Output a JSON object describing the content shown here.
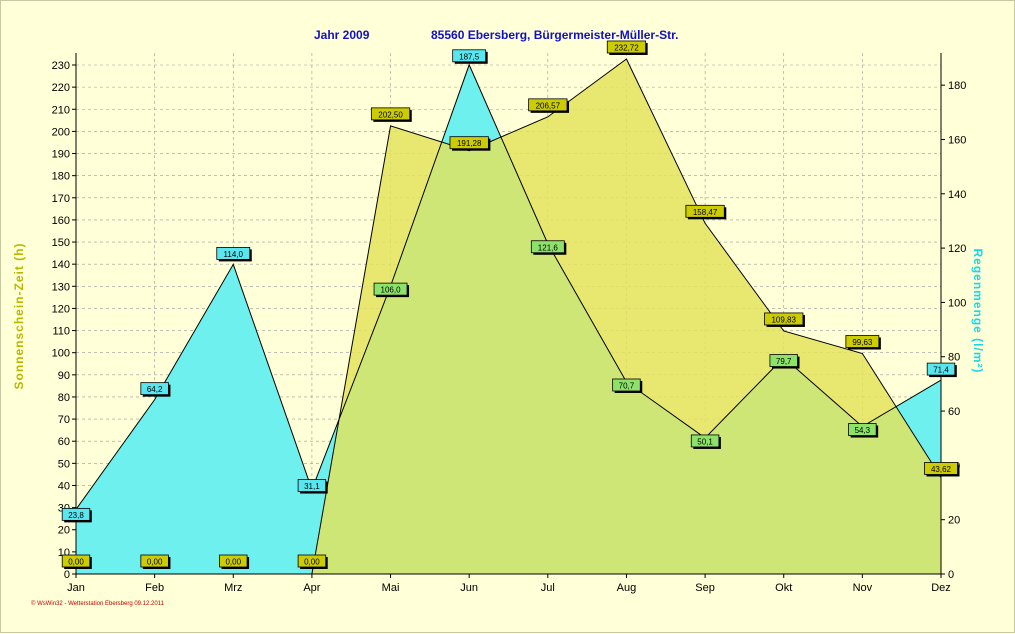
{
  "title": {
    "year": "Jahr  2009",
    "location": "85560 Ebersberg, Bürgermeister-Müller-Str."
  },
  "footer": "© WsWin32 - Wetterstation Ebersberg 09.12.2011",
  "chart_data": {
    "type": "area",
    "categories": [
      "Jan",
      "Feb",
      "Mrz",
      "Apr",
      "Mai",
      "Jun",
      "Jul",
      "Aug",
      "Sep",
      "Okt",
      "Nov",
      "Dez"
    ],
    "ylabel_left": "Sonnenschein-Zeit  (h)",
    "ylabel_right": "Regenmenge  (l/m²)",
    "ylim_left": [
      0,
      230
    ],
    "ylim_right": [
      0,
      190
    ],
    "yticks_left": [
      0,
      10,
      20,
      30,
      40,
      50,
      60,
      70,
      80,
      90,
      100,
      110,
      120,
      130,
      140,
      150,
      160,
      170,
      180,
      190,
      200,
      210,
      220,
      230
    ],
    "yticks_right": [
      0,
      20,
      40,
      60,
      80,
      100,
      120,
      140,
      160,
      180
    ],
    "grid": true,
    "series": [
      {
        "axis": "left",
        "color": "#e3e35a",
        "label_color": "#cccc00",
        "values": [
          0.0,
          0.0,
          0.0,
          0.0,
          202.5,
          191.28,
          206.57,
          232.72,
          158.47,
          109.83,
          99.63,
          43.62
        ],
        "labels": [
          "0,00",
          "0,00",
          "0,00",
          "0,00",
          "202,50",
          "191,28",
          "206,57",
          "232,72",
          "158,47",
          "109,83",
          "99,63",
          "43,62"
        ]
      },
      {
        "axis": "right",
        "color": "#6ef0ee",
        "label_color": "#5ae6ee",
        "values": [
          23.8,
          64.2,
          114.0,
          31.1,
          106.0,
          187.5,
          121.6,
          70.7,
          50.1,
          79.7,
          54.3,
          71.4
        ],
        "labels": [
          "23,8",
          "64,2",
          "114,0",
          "31,1",
          "106,0",
          "187,5",
          "121,6",
          "70,7",
          "50,1",
          "79,7",
          "54,3",
          "71,4"
        ]
      }
    ]
  }
}
